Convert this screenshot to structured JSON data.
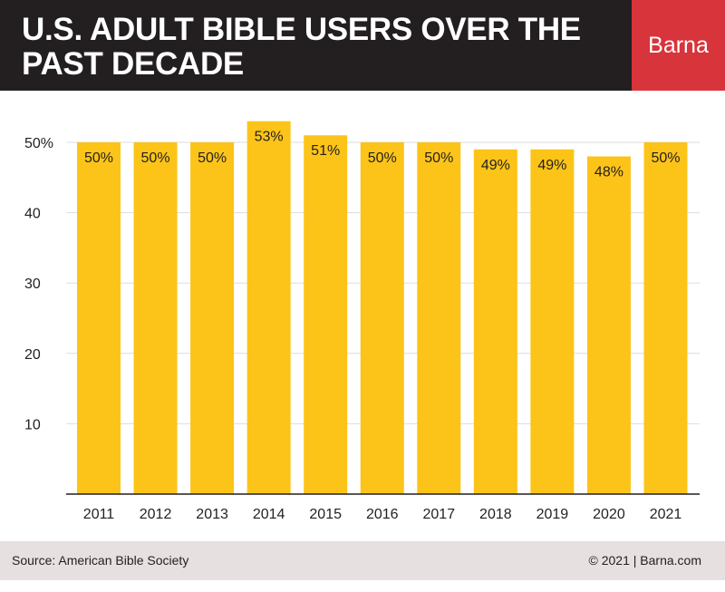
{
  "header": {
    "title": "U.S. Adult Bible Users over the Past Decade",
    "logo_text": "Barna",
    "logo_color": "#d8343b",
    "background": "#231f20"
  },
  "chart_data": {
    "type": "bar",
    "categories": [
      "2011",
      "2012",
      "2013",
      "2014",
      "2015",
      "2016",
      "2017",
      "2018",
      "2019",
      "2020",
      "2021"
    ],
    "values": [
      50,
      50,
      50,
      53,
      51,
      50,
      50,
      49,
      49,
      48,
      50
    ],
    "data_labels": [
      "50%",
      "50%",
      "50%",
      "53%",
      "51%",
      "50%",
      "50%",
      "49%",
      "49%",
      "48%",
      "50%"
    ],
    "yticks": [
      {
        "value": 10,
        "label": "10"
      },
      {
        "value": 20,
        "label": "20"
      },
      {
        "value": 30,
        "label": "30"
      },
      {
        "value": 40,
        "label": "40"
      },
      {
        "value": 50,
        "label": "50%"
      }
    ],
    "ylim": [
      0,
      55
    ],
    "grid": true,
    "bar_color": "#fcc419"
  },
  "footer": {
    "source": "Source: American Bible Society",
    "copyright": "© 2021 |  Barna.com"
  }
}
